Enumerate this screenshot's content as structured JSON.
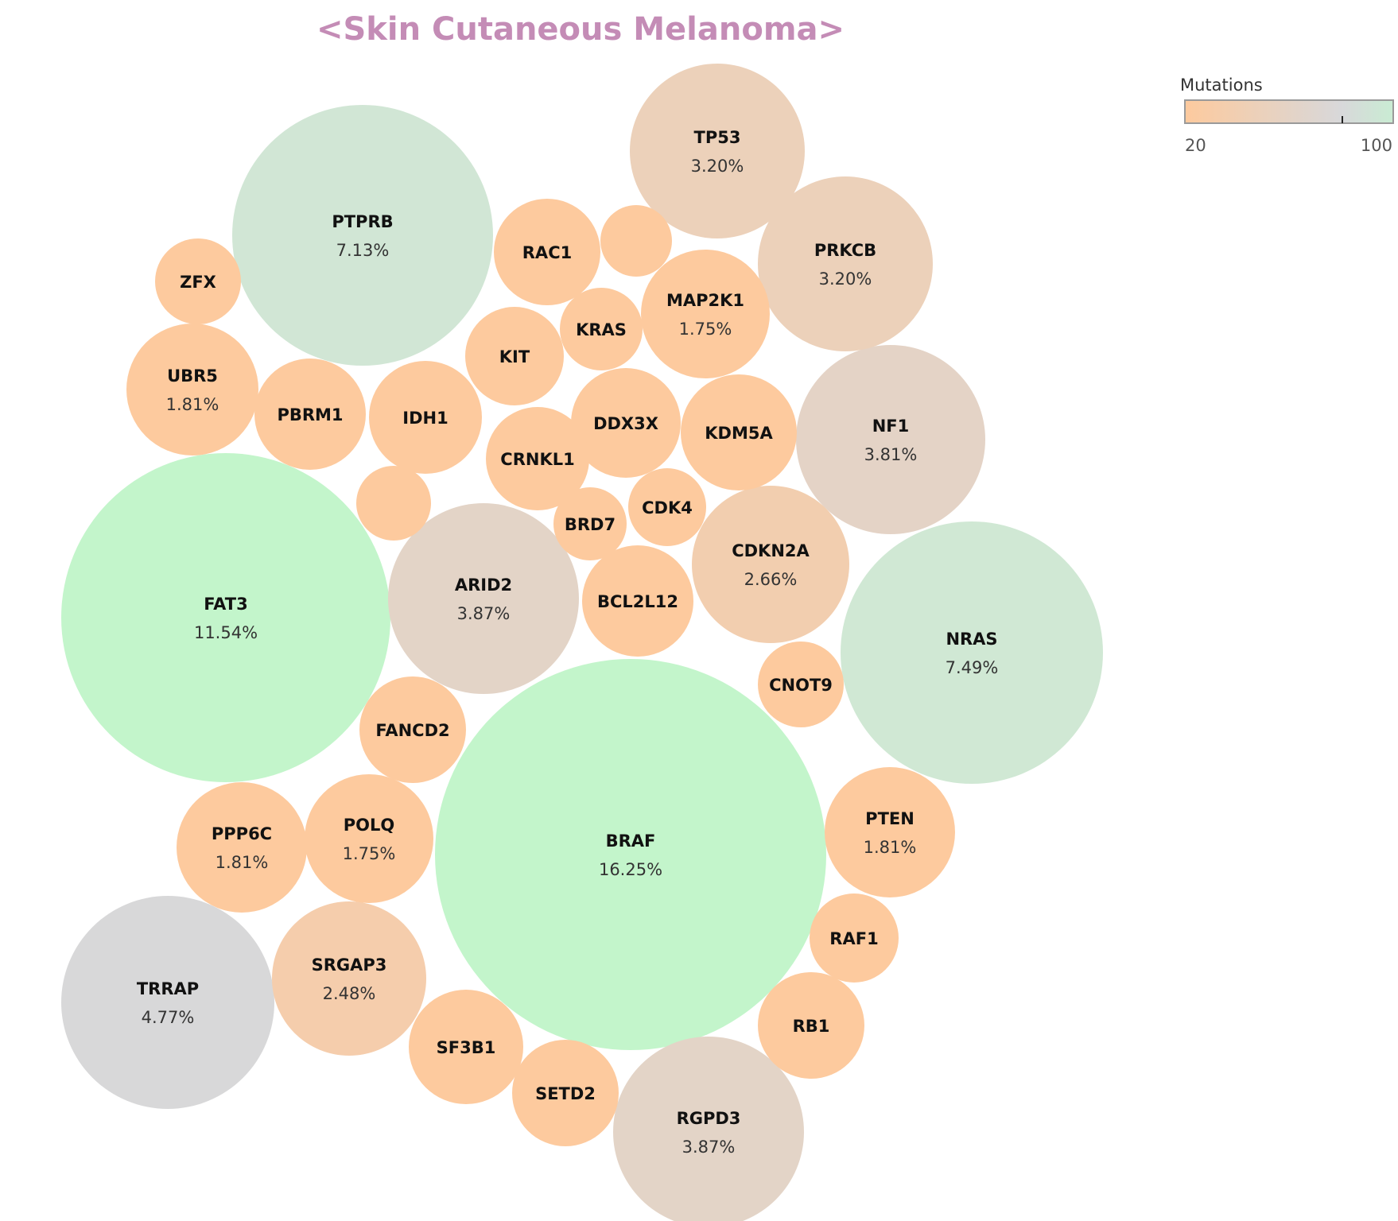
{
  "chart_data": {
    "type": "bubble",
    "title": "<Skin Cutaneous Melanoma>",
    "legend": {
      "title": "Mutations",
      "min_label": "20",
      "max_label": "100",
      "placement": "top-right",
      "colors": [
        "#fdca9e",
        "#d8d8da",
        "#c3f5cb"
      ]
    },
    "bubbles": [
      {
        "gene": "BRAF",
        "pct": "16.25%",
        "value": 16.25
      },
      {
        "gene": "FAT3",
        "pct": "11.54%",
        "value": 11.54
      },
      {
        "gene": "NRAS",
        "pct": "7.49%",
        "value": 7.49
      },
      {
        "gene": "PTPRB",
        "pct": "7.13%",
        "value": 7.13
      },
      {
        "gene": "TRRAP",
        "pct": "4.77%",
        "value": 4.77
      },
      {
        "gene": "ARID2",
        "pct": "3.87%",
        "value": 3.87
      },
      {
        "gene": "RGPD3",
        "pct": "3.87%",
        "value": 3.87
      },
      {
        "gene": "NF1",
        "pct": "3.81%",
        "value": 3.81
      },
      {
        "gene": "TP53",
        "pct": "3.20%",
        "value": 3.2
      },
      {
        "gene": "PRKCB",
        "pct": "3.20%",
        "value": 3.2
      },
      {
        "gene": "CDKN2A",
        "pct": "2.66%",
        "value": 2.66
      },
      {
        "gene": "SRGAP3",
        "pct": "2.48%",
        "value": 2.48
      },
      {
        "gene": "UBR5",
        "pct": "1.81%",
        "value": 1.81
      },
      {
        "gene": "PPP6C",
        "pct": "1.81%",
        "value": 1.81
      },
      {
        "gene": "PTEN",
        "pct": "1.81%",
        "value": 1.81
      },
      {
        "gene": "MAP2K1",
        "pct": "1.75%",
        "value": 1.75
      },
      {
        "gene": "POLQ",
        "pct": "1.75%",
        "value": 1.75
      },
      {
        "gene": "PBRM1",
        "pct": "",
        "value": 1.45
      },
      {
        "gene": "IDH1",
        "pct": "",
        "value": 1.45
      },
      {
        "gene": "KDM5A",
        "pct": "",
        "value": 1.5
      },
      {
        "gene": "DDX3X",
        "pct": "",
        "value": 1.35
      },
      {
        "gene": "BCL2L12",
        "pct": "",
        "value": 1.4
      },
      {
        "gene": "RAC1",
        "pct": "",
        "value": 1.3
      },
      {
        "gene": "CRNKL1",
        "pct": "",
        "value": 1.2
      },
      {
        "gene": "KIT",
        "pct": "",
        "value": 1.1
      },
      {
        "gene": "FANCD2",
        "pct": "",
        "value": 1.3
      },
      {
        "gene": "SF3B1",
        "pct": "",
        "value": 1.5
      },
      {
        "gene": "SETD2",
        "pct": "",
        "value": 1.3
      },
      {
        "gene": "RB1",
        "pct": "",
        "value": 1.3
      },
      {
        "gene": "RAF1",
        "pct": "",
        "value": 0.9
      },
      {
        "gene": "ZFX",
        "pct": "",
        "value": 0.85
      },
      {
        "gene": "KRAS",
        "pct": "",
        "value": 0.8
      },
      {
        "gene": "BRD7",
        "pct": "",
        "value": 0.65
      },
      {
        "gene": "CDK4",
        "pct": "",
        "value": 0.7
      },
      {
        "gene": "CNOT9",
        "pct": "",
        "value": 0.85
      },
      {
        "gene": "",
        "pct": "",
        "value": 0.6
      },
      {
        "gene": "",
        "pct": "",
        "value": 0.65
      }
    ]
  }
}
